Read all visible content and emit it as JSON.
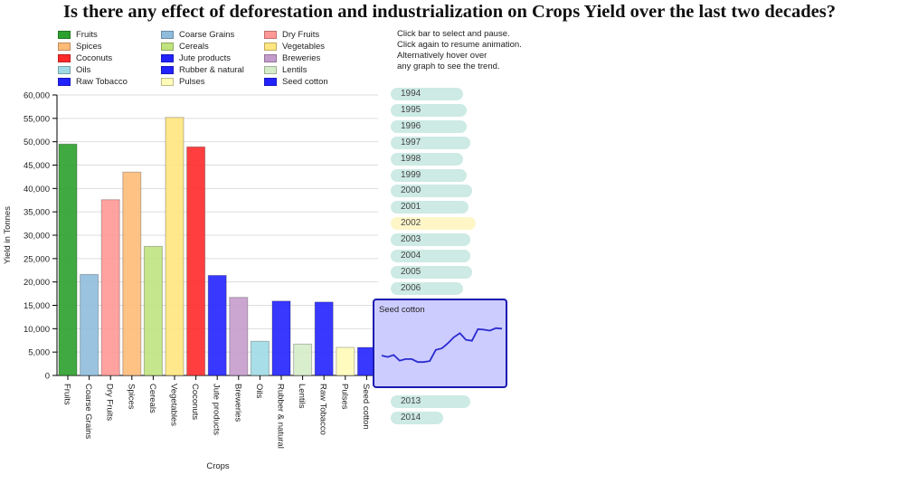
{
  "title": "Is there any effect of deforestation and industrialization on Crops Yield over the last two decades?",
  "instructions": [
    "Click bar to select and pause.",
    "Click again to resume animation.",
    "Alternatively hover over",
    "any graph to see the trend."
  ],
  "legend": [
    {
      "label": "Fruits",
      "color": "#2ca02c"
    },
    {
      "label": "Spices",
      "color": "#ffbb78"
    },
    {
      "label": "Coconuts",
      "color": "#ff2a2a"
    },
    {
      "label": "Oils",
      "color": "#9edae5"
    },
    {
      "label": "Raw Tobacco",
      "color": "#2222ff"
    },
    {
      "label": "Coarse Grains",
      "color": "#8fbcdc"
    },
    {
      "label": "Cereals",
      "color": "#bfe37f"
    },
    {
      "label": "Jute products",
      "color": "#2222ff"
    },
    {
      "label": "Rubber & natural",
      "color": "#2222ff"
    },
    {
      "label": "Pulses",
      "color": "#fffbb8"
    },
    {
      "label": "Dry Fruits",
      "color": "#ff9896"
    },
    {
      "label": "Vegetables",
      "color": "#ffe680"
    },
    {
      "label": "Breweries",
      "color": "#c49ccc"
    },
    {
      "label": "Lentils",
      "color": "#d5ecc8"
    },
    {
      "label": "Seed cotton",
      "color": "#2222ff"
    }
  ],
  "years": [
    "1994",
    "1995",
    "1996",
    "1997",
    "1998",
    "1999",
    "2000",
    "2001",
    "2002",
    "2003",
    "2004",
    "2005",
    "2006",
    "2013",
    "2014"
  ],
  "selected_year": "2002",
  "tooltip": {
    "title": "Seed cotton",
    "line_color": "#2a2ad0",
    "trend": [
      3400,
      3100,
      3500,
      2400,
      2700,
      2700,
      2100,
      2100,
      2300,
      4500,
      4800,
      5800,
      7000,
      7800,
      6500,
      6300,
      8600,
      8500,
      8300,
      8800,
      8700
    ]
  },
  "chart_data": {
    "type": "bar",
    "title": "Is there any effect of deforestation and industrialization on Crops Yield over the last two decades?",
    "xlabel": "Crops",
    "ylabel": "Yield in Tonnes",
    "ylim": [
      0,
      60000
    ],
    "yticks": [
      "0",
      "5,000",
      "10,000",
      "15,000",
      "20,000",
      "25,000",
      "30,000",
      "35,000",
      "40,000",
      "45,000",
      "50,000",
      "55,000",
      "60,000"
    ],
    "grid": true,
    "legend_position": "top",
    "categories": [
      "Fruits",
      "Coarse Grains",
      "Dry Fruits",
      "Spices",
      "Cereals",
      "Vegetables",
      "Coconuts",
      "Jute products",
      "Breweries",
      "Oils",
      "Rubber & natural",
      "Lentils",
      "Raw Tobacco",
      "Pulses",
      "Seed cotton"
    ],
    "values": [
      49500,
      21600,
      37600,
      43500,
      27600,
      55200,
      48900,
      21400,
      16700,
      7300,
      15900,
      6700,
      15700,
      6000,
      6000
    ],
    "colors": [
      "#2ca02c",
      "#8fbcdc",
      "#ff9896",
      "#ffbb78",
      "#bfe37f",
      "#ffe680",
      "#ff2a2a",
      "#2222ff",
      "#c49ccc",
      "#9edae5",
      "#2222ff",
      "#d5ecc8",
      "#2222ff",
      "#fffbb8",
      "#2222ff"
    ]
  }
}
